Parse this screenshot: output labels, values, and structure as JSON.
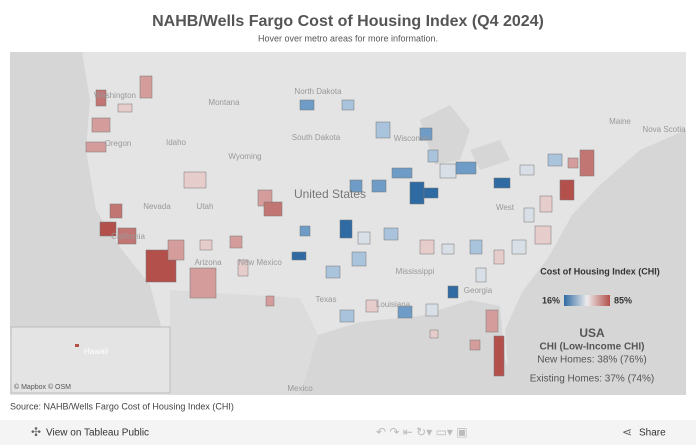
{
  "header": {
    "title": "NAHB/Wells Fargo Cost of Housing Index (Q4 2024)",
    "subtitle": "Hover over metro areas for more information."
  },
  "map": {
    "labels": [
      "Washington",
      "Montana",
      "North Dakota",
      "South Dakota",
      "Wisconsin",
      "Maine",
      "Nova Scotia",
      "Oregon",
      "Idaho",
      "Wyoming",
      "Nevada",
      "Utah",
      "United States",
      "California",
      "Arizona",
      "New Mexico",
      "Mississippi",
      "Texas",
      "Louisiana",
      "Georgia",
      "West",
      "Mexico"
    ],
    "inset_label": "Hawaii",
    "attribution": "© Mapbox © OSM"
  },
  "legend": {
    "title": "Cost of Housing Index (CHI)",
    "min": "16%",
    "max": "85%"
  },
  "summary": {
    "region": "USA",
    "subtitle": "CHI (Low-Income CHI)",
    "new_homes": "New Homes: 38% (76%)",
    "existing_homes": "Existing Homes: 37% (74%)"
  },
  "source": "Source: NAHB/Wells Fargo Cost of Housing Index (CHI)",
  "toolbar": {
    "view": "View on Tableau Public",
    "share": "Share"
  }
}
